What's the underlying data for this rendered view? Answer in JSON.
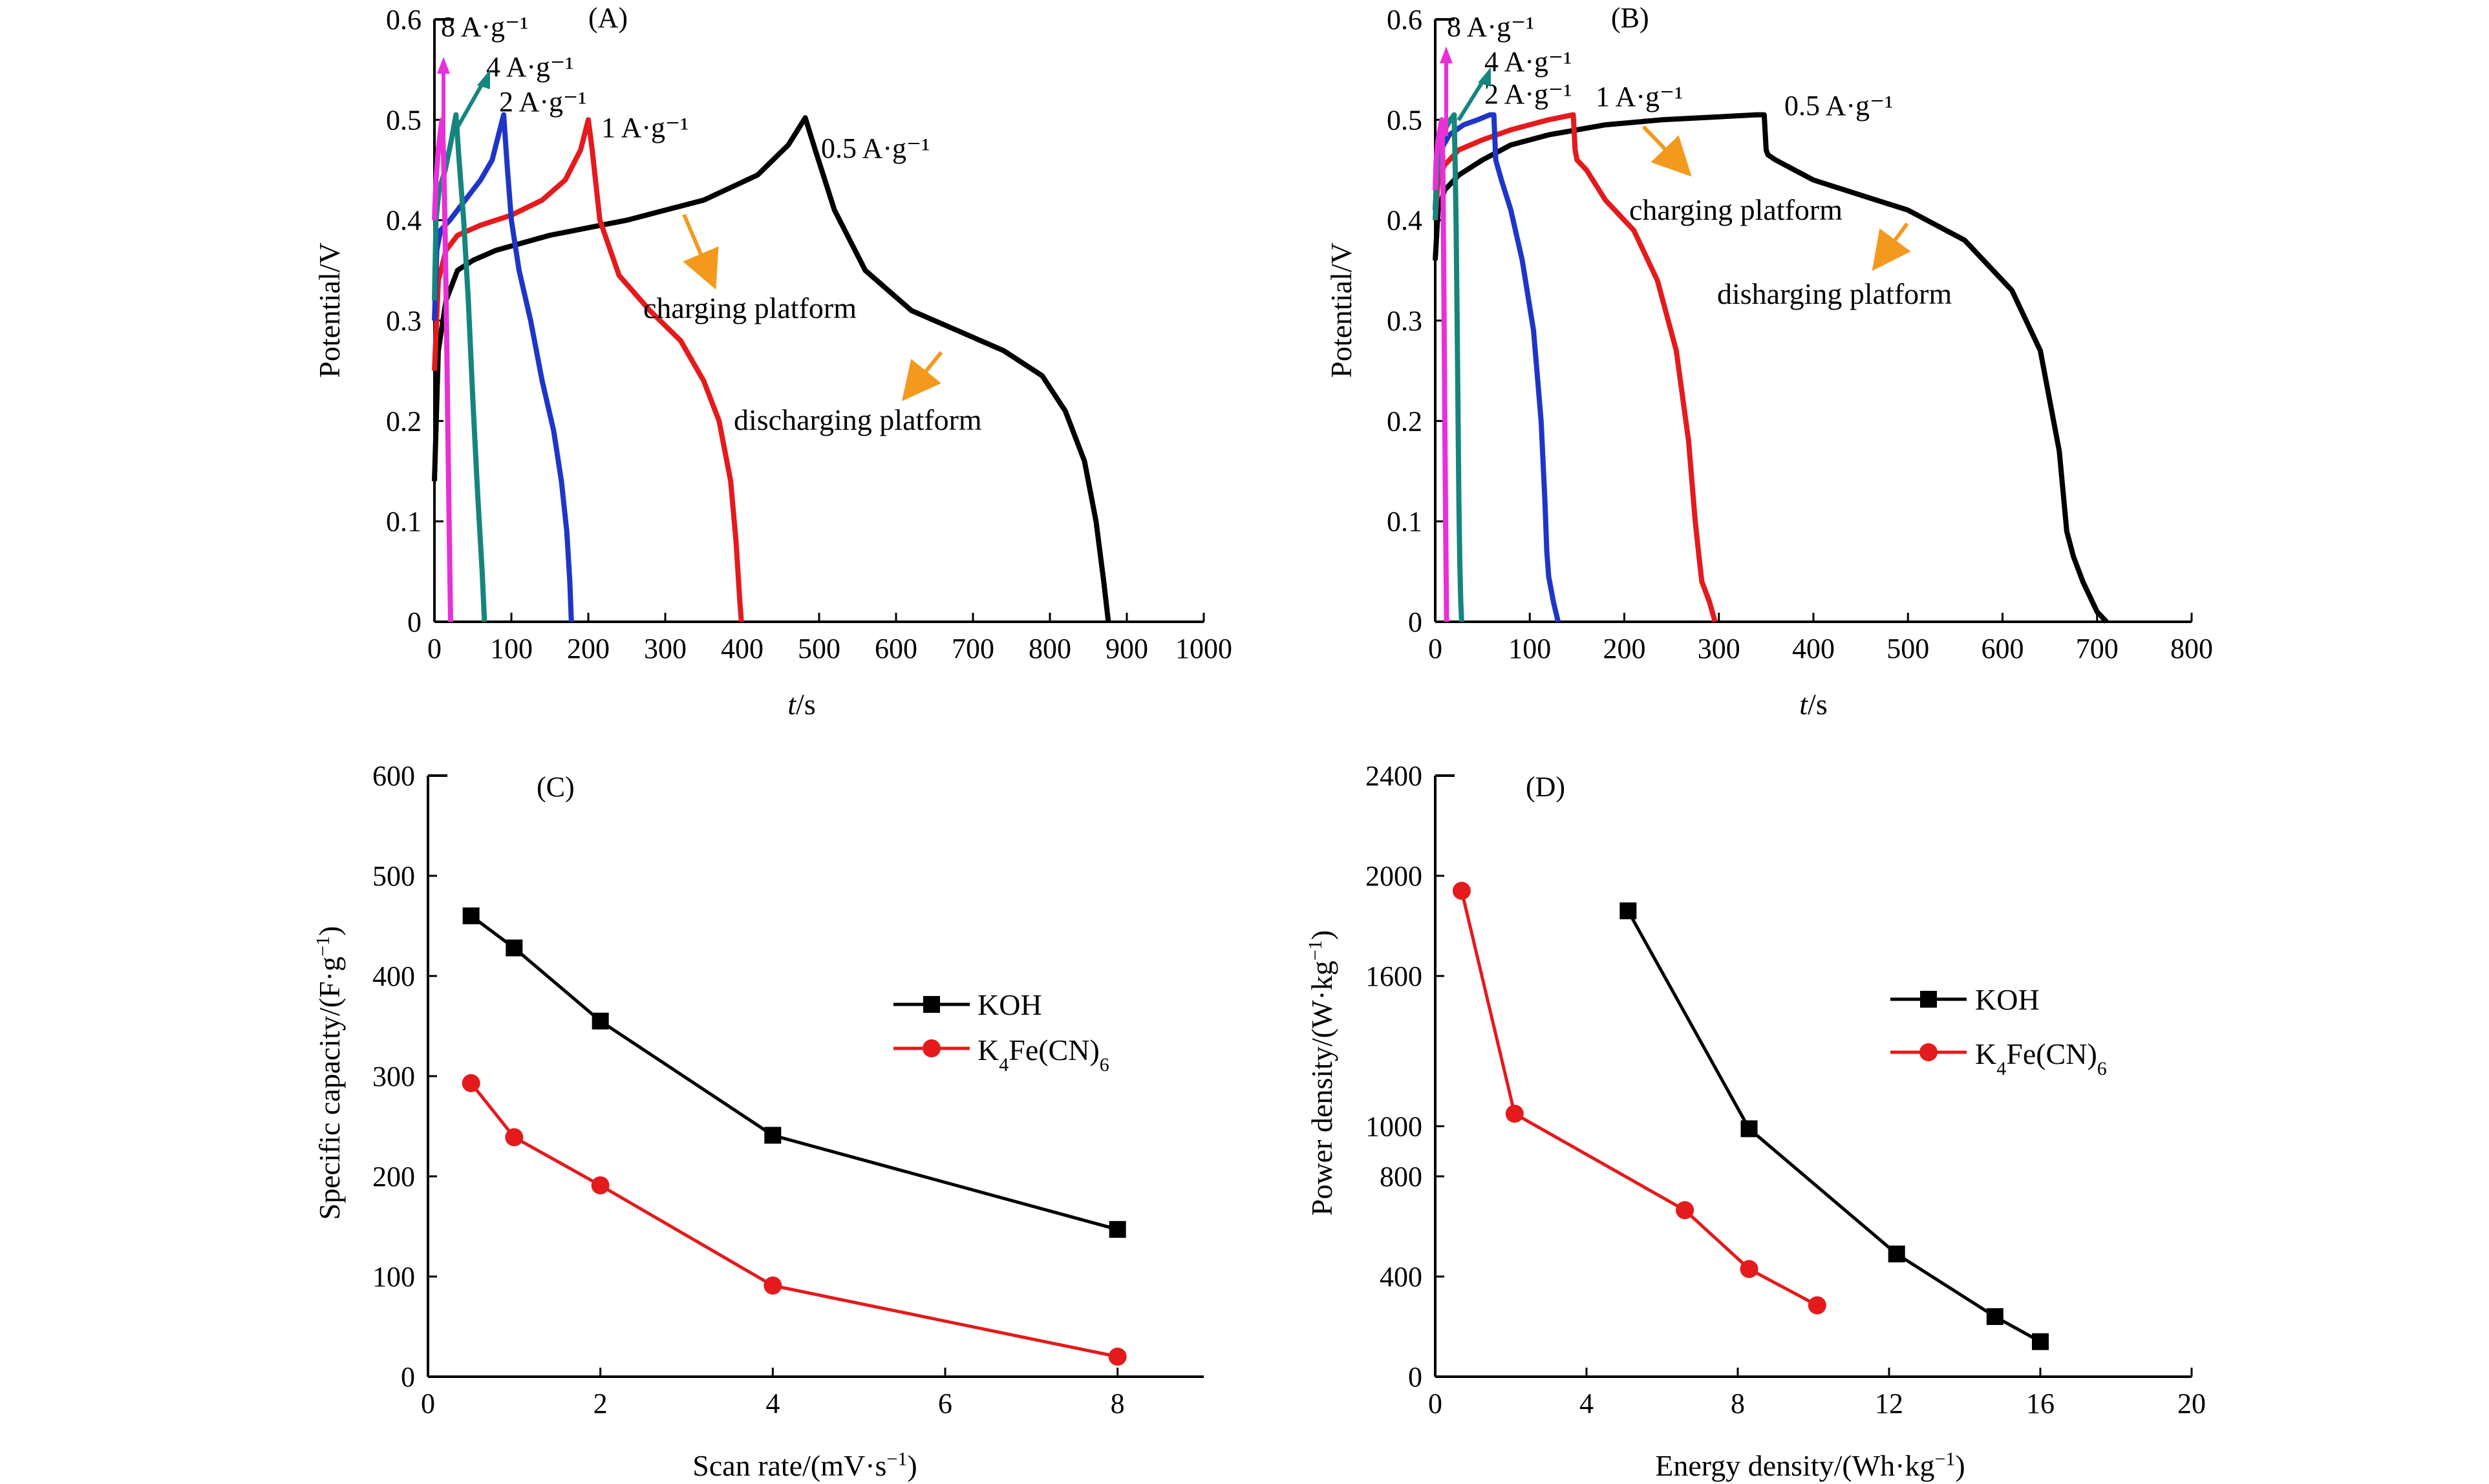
{
  "chart_data": [
    {
      "panel_label": "(A)",
      "type": "line",
      "xlabel_italic": "t",
      "xlabel_rest": "/s",
      "ylabel": "Potential/V",
      "xlim": [
        0,
        1000
      ],
      "ylim": [
        0,
        0.6
      ],
      "xticks": [
        0,
        100,
        200,
        300,
        400,
        500,
        600,
        700,
        800,
        900,
        1000
      ],
      "yticks": [
        0,
        0.1,
        0.2,
        0.3,
        0.4,
        0.5,
        0.6
      ],
      "ytick_labels": [
        "0",
        "0.1",
        "0.2",
        "0.3",
        "0.4",
        "0.5",
        "0.6"
      ],
      "grid": false,
      "series": [
        {
          "name": "0.5 A·g⁻¹",
          "color": "#000000",
          "x": [
            0,
            5,
            15,
            30,
            50,
            80,
            150,
            250,
            350,
            420,
            460,
            482,
            495,
            520,
            560,
            620,
            680,
            740,
            790,
            820,
            845,
            860,
            870,
            876
          ],
          "y": [
            0.14,
            0.27,
            0.32,
            0.35,
            0.36,
            0.37,
            0.385,
            0.4,
            0.42,
            0.445,
            0.475,
            0.502,
            0.47,
            0.41,
            0.35,
            0.31,
            0.29,
            0.27,
            0.245,
            0.21,
            0.16,
            0.1,
            0.04,
            0.0
          ]
        },
        {
          "name": "1 A·g⁻¹",
          "color": "#e41a1c",
          "x": [
            0,
            5,
            15,
            30,
            60,
            100,
            140,
            170,
            190,
            200,
            205,
            215,
            240,
            280,
            320,
            350,
            370,
            385,
            392,
            397,
            399
          ],
          "y": [
            0.25,
            0.34,
            0.37,
            0.385,
            0.395,
            0.405,
            0.42,
            0.44,
            0.47,
            0.5,
            0.47,
            0.4,
            0.345,
            0.31,
            0.28,
            0.24,
            0.2,
            0.14,
            0.08,
            0.02,
            0.0
          ]
        },
        {
          "name": "2 A·g⁻¹",
          "color": "#1f35c8",
          "x": [
            0,
            3,
            8,
            20,
            40,
            60,
            75,
            85,
            90,
            95,
            100,
            110,
            125,
            140,
            155,
            165,
            172,
            176,
            178
          ],
          "y": [
            0.3,
            0.37,
            0.39,
            0.4,
            0.42,
            0.44,
            0.46,
            0.49,
            0.505,
            0.45,
            0.4,
            0.35,
            0.3,
            0.24,
            0.19,
            0.14,
            0.09,
            0.04,
            0.0
          ]
        },
        {
          "name": "4 A·g⁻¹",
          "color": "#15857e",
          "x": [
            0,
            2,
            6,
            14,
            22,
            28,
            32,
            38,
            44,
            50,
            56,
            62,
            65
          ],
          "y": [
            0.32,
            0.4,
            0.43,
            0.45,
            0.48,
            0.505,
            0.46,
            0.4,
            0.32,
            0.22,
            0.13,
            0.05,
            0.0
          ]
        },
        {
          "name": "8 A·g⁻¹",
          "color": "#e830d8",
          "x": [
            0,
            2,
            5,
            8,
            10,
            12,
            14,
            16,
            18,
            20,
            21
          ],
          "y": [
            0.4,
            0.44,
            0.47,
            0.49,
            0.5,
            0.46,
            0.38,
            0.28,
            0.16,
            0.05,
            0.0
          ]
        }
      ],
      "annotations": [
        "charging platform",
        "discharging platform"
      ]
    },
    {
      "panel_label": "(B)",
      "type": "line",
      "xlabel_italic": "t",
      "xlabel_rest": "/s",
      "ylabel": "Potential/V",
      "xlim": [
        0,
        800
      ],
      "ylim": [
        0,
        0.6
      ],
      "xticks": [
        0,
        100,
        200,
        300,
        400,
        500,
        600,
        700,
        800
      ],
      "yticks": [
        0,
        0.1,
        0.2,
        0.3,
        0.4,
        0.5,
        0.6
      ],
      "ytick_labels": [
        "0",
        "0.1",
        "0.2",
        "0.3",
        "0.4",
        "0.5",
        "0.6"
      ],
      "grid": false,
      "series": [
        {
          "name": "0.5 A·g⁻¹",
          "color": "#000000",
          "x": [
            0,
            3,
            10,
            25,
            50,
            80,
            120,
            180,
            240,
            300,
            340,
            348,
            350,
            352,
            360,
            400,
            450,
            500,
            560,
            610,
            640,
            660,
            668,
            675,
            685,
            700,
            710
          ],
          "y": [
            0.36,
            0.41,
            0.43,
            0.445,
            0.46,
            0.475,
            0.485,
            0.495,
            0.5,
            0.503,
            0.505,
            0.505,
            0.47,
            0.465,
            0.46,
            0.44,
            0.425,
            0.41,
            0.38,
            0.33,
            0.27,
            0.17,
            0.09,
            0.065,
            0.04,
            0.01,
            0.0
          ]
        },
        {
          "name": "1 A·g⁻¹",
          "color": "#e41a1c",
          "x": [
            0,
            3,
            10,
            25,
            50,
            80,
            120,
            146,
            148,
            150,
            160,
            180,
            210,
            235,
            255,
            268,
            275,
            279,
            282,
            290,
            296
          ],
          "y": [
            0.4,
            0.44,
            0.455,
            0.47,
            0.48,
            0.49,
            0.5,
            0.505,
            0.47,
            0.46,
            0.45,
            0.42,
            0.39,
            0.34,
            0.27,
            0.18,
            0.1,
            0.065,
            0.04,
            0.02,
            0.0
          ]
        },
        {
          "name": "2 A·g⁻¹",
          "color": "#1f35c8",
          "x": [
            0,
            2,
            6,
            15,
            30,
            45,
            58,
            62,
            64,
            70,
            80,
            92,
            104,
            112,
            116,
            118,
            120,
            125,
            130
          ],
          "y": [
            0.41,
            0.45,
            0.47,
            0.485,
            0.495,
            0.5,
            0.505,
            0.505,
            0.46,
            0.44,
            0.41,
            0.36,
            0.29,
            0.2,
            0.12,
            0.07,
            0.045,
            0.02,
            0.0
          ]
        },
        {
          "name": "4 A·g⁻¹",
          "color": "#15857e",
          "x": [
            0,
            2,
            5,
            10,
            16,
            20,
            21,
            22,
            23,
            24,
            25,
            26,
            27,
            28
          ],
          "y": [
            0.4,
            0.45,
            0.47,
            0.49,
            0.5,
            0.505,
            0.46,
            0.4,
            0.32,
            0.22,
            0.12,
            0.06,
            0.02,
            0.0
          ]
        },
        {
          "name": "8 A·g⁻¹",
          "color": "#e830d8",
          "x": [
            0,
            1,
            3,
            5,
            7,
            8,
            9,
            10,
            11,
            12
          ],
          "y": [
            0.43,
            0.46,
            0.48,
            0.49,
            0.5,
            0.46,
            0.35,
            0.22,
            0.1,
            0.0
          ]
        }
      ],
      "annotations": [
        "charging platform",
        "disharging platform"
      ]
    },
    {
      "panel_label": "(C)",
      "type": "line",
      "xlabel": "Scan rate/(mV·s⁻¹)",
      "ylabel": "Specific capacity/(F·g⁻¹)",
      "xlim": [
        0,
        9
      ],
      "ylim": [
        0,
        600
      ],
      "xticks": [
        0,
        2,
        4,
        6,
        8
      ],
      "yticks": [
        0,
        100,
        200,
        300,
        400,
        500,
        600
      ],
      "grid": false,
      "legend_position": "right",
      "series": [
        {
          "name": "KOH",
          "color": "#000000",
          "marker": "square",
          "x": [
            0.5,
            1,
            2,
            4,
            8
          ],
          "y": [
            460,
            428,
            355,
            241,
            147
          ]
        },
        {
          "name": "K4Fe(CN)6",
          "color": "#e41a1c",
          "marker": "circle",
          "x": [
            0.5,
            1,
            2,
            4,
            8
          ],
          "y": [
            293,
            239,
            191,
            91,
            20
          ]
        }
      ]
    },
    {
      "panel_label": "(D)",
      "type": "line",
      "xlabel": "Energy density/(Wh·kg⁻¹)",
      "ylabel": "Power density/(W·kg⁻¹)",
      "xlim": [
        0,
        20
      ],
      "ylim": [
        0,
        2400
      ],
      "xticks": [
        0,
        4,
        8,
        12,
        16,
        20
      ],
      "yticks": [
        0,
        400,
        800,
        1000,
        1600,
        2000,
        2400
      ],
      "grid": false,
      "legend_position": "right",
      "series": [
        {
          "name": "KOH",
          "color": "#000000",
          "marker": "square",
          "x": [
            5.1,
            8.3,
            12.2,
            14.8,
            16.0
          ],
          "y": [
            1860,
            990,
            490,
            240,
            140
          ]
        },
        {
          "name": "K4Fe(CN)6",
          "color": "#e41a1c",
          "marker": "circle",
          "x": [
            0.7,
            2.1,
            6.6,
            8.3,
            10.1
          ],
          "y": [
            1940,
            1050,
            665,
            430,
            285
          ]
        }
      ]
    }
  ]
}
